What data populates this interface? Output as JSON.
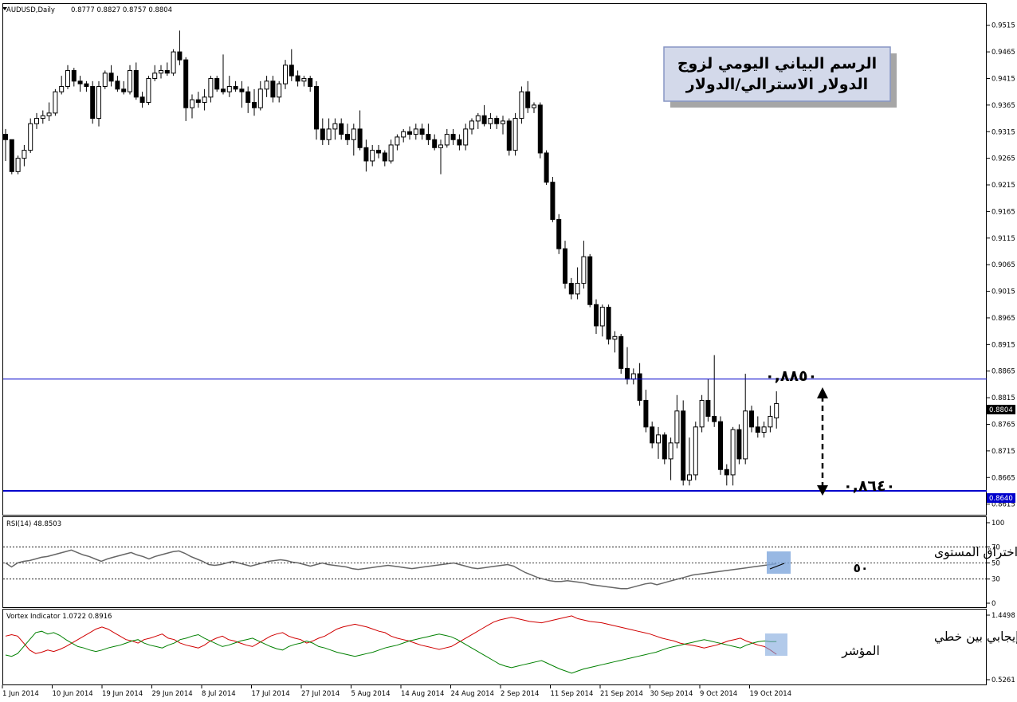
{
  "chart_data": [
    {
      "type": "candlestick",
      "symbol_label": "AUDUSD,Daily",
      "ohlc_label": "0.8777 0.8827 0.8757 0.8804",
      "title_line1": "الرسم البياني اليومي لزوج",
      "title_line2": "الدولار الاسترالي/الدولار",
      "ylim": [
        0.8595,
        0.9555
      ],
      "y_ticks": [
        "0.9515",
        "0.9465",
        "0.9415",
        "0.9365",
        "0.9315",
        "0.9265",
        "0.9215",
        "0.9165",
        "0.9115",
        "0.9065",
        "0.9015",
        "0.8965",
        "0.8915",
        "0.8865",
        "0.8815",
        "0.8765",
        "0.8715",
        "0.8665",
        "0.8615"
      ],
      "price_badge": "0.8804",
      "level_badge": "0.8640",
      "levels": [
        {
          "value": 0.885,
          "label": "٠,٨٨٥٠"
        },
        {
          "value": 0.864,
          "label": "٠,٨٦٤٠"
        }
      ],
      "x_labels": [
        "1 Jun 2014",
        "10 Jun 2014",
        "19 Jun 2014",
        "29 Jun 2014",
        "8 Jul 2014",
        "17 Jul 2014",
        "27 Jul 2014",
        "5 Aug 2014",
        "14 Aug 2014",
        "24 Aug 2014",
        "2 Sep 2014",
        "11 Sep 2014",
        "21 Sep 2014",
        "30 Sep 2014",
        "9 Oct 2014",
        "19 Oct 2014"
      ],
      "candles": [
        [
          0.931,
          0.932,
          0.926,
          0.93
        ],
        [
          0.93,
          0.93,
          0.9235,
          0.924
        ],
        [
          0.924,
          0.927,
          0.9235,
          0.9265
        ],
        [
          0.9265,
          0.929,
          0.925,
          0.928
        ],
        [
          0.928,
          0.934,
          0.9275,
          0.933
        ],
        [
          0.933,
          0.935,
          0.932,
          0.934
        ],
        [
          0.934,
          0.9355,
          0.933,
          0.9345
        ],
        [
          0.9345,
          0.937,
          0.9335,
          0.935
        ],
        [
          0.935,
          0.9395,
          0.9345,
          0.939
        ],
        [
          0.939,
          0.942,
          0.9385,
          0.94
        ],
        [
          0.94,
          0.944,
          0.9395,
          0.943
        ],
        [
          0.943,
          0.9435,
          0.94,
          0.941
        ],
        [
          0.941,
          0.942,
          0.939,
          0.9405
        ],
        [
          0.9405,
          0.941,
          0.939,
          0.94
        ],
        [
          0.94,
          0.941,
          0.933,
          0.934
        ],
        [
          0.934,
          0.941,
          0.9325,
          0.94
        ],
        [
          0.94,
          0.943,
          0.9395,
          0.9425
        ],
        [
          0.9425,
          0.944,
          0.94,
          0.941
        ],
        [
          0.941,
          0.942,
          0.939,
          0.9395
        ],
        [
          0.9395,
          0.941,
          0.9385,
          0.939
        ],
        [
          0.939,
          0.944,
          0.9385,
          0.943
        ],
        [
          0.943,
          0.9445,
          0.9375,
          0.938
        ],
        [
          0.938,
          0.939,
          0.936,
          0.937
        ],
        [
          0.937,
          0.942,
          0.9365,
          0.9415
        ],
        [
          0.9415,
          0.944,
          0.941,
          0.9425
        ],
        [
          0.9425,
          0.944,
          0.9415,
          0.943
        ],
        [
          0.943,
          0.9445,
          0.942,
          0.9425
        ],
        [
          0.9425,
          0.947,
          0.942,
          0.9465
        ],
        [
          0.9465,
          0.9505,
          0.944,
          0.945
        ],
        [
          0.945,
          0.9455,
          0.9335,
          0.936
        ],
        [
          0.936,
          0.9385,
          0.934,
          0.9375
        ],
        [
          0.9375,
          0.939,
          0.936,
          0.937
        ],
        [
          0.937,
          0.9395,
          0.9355,
          0.938
        ],
        [
          0.938,
          0.942,
          0.937,
          0.9415
        ],
        [
          0.9415,
          0.942,
          0.939,
          0.9395
        ],
        [
          0.9395,
          0.946,
          0.9385,
          0.939
        ],
        [
          0.939,
          0.942,
          0.938,
          0.94
        ],
        [
          0.94,
          0.941,
          0.939,
          0.9395
        ],
        [
          0.9395,
          0.941,
          0.936,
          0.939
        ],
        [
          0.939,
          0.94,
          0.935,
          0.937
        ],
        [
          0.937,
          0.9395,
          0.9345,
          0.936
        ],
        [
          0.936,
          0.941,
          0.9355,
          0.9395
        ],
        [
          0.9395,
          0.942,
          0.938,
          0.941
        ],
        [
          0.941,
          0.942,
          0.937,
          0.938
        ],
        [
          0.938,
          0.941,
          0.937,
          0.9405
        ],
        [
          0.9405,
          0.945,
          0.9395,
          0.944
        ],
        [
          0.944,
          0.947,
          0.941,
          0.942
        ],
        [
          0.942,
          0.943,
          0.94,
          0.941
        ],
        [
          0.941,
          0.942,
          0.94,
          0.9415
        ],
        [
          0.9415,
          0.942,
          0.939,
          0.94
        ],
        [
          0.94,
          0.941,
          0.93,
          0.932
        ],
        [
          0.932,
          0.934,
          0.929,
          0.93
        ],
        [
          0.93,
          0.934,
          0.929,
          0.932
        ],
        [
          0.932,
          0.934,
          0.93,
          0.933
        ],
        [
          0.933,
          0.934,
          0.93,
          0.931
        ],
        [
          0.931,
          0.933,
          0.929,
          0.93
        ],
        [
          0.93,
          0.933,
          0.927,
          0.932
        ],
        [
          0.932,
          0.9355,
          0.928,
          0.9285
        ],
        [
          0.9285,
          0.93,
          0.924,
          0.926
        ],
        [
          0.926,
          0.929,
          0.925,
          0.928
        ],
        [
          0.928,
          0.929,
          0.9265,
          0.9275
        ],
        [
          0.9275,
          0.928,
          0.925,
          0.926
        ],
        [
          0.926,
          0.93,
          0.9255,
          0.929
        ],
        [
          0.929,
          0.931,
          0.928,
          0.9305
        ],
        [
          0.9305,
          0.932,
          0.9295,
          0.9315
        ],
        [
          0.9315,
          0.9325,
          0.93,
          0.931
        ],
        [
          0.931,
          0.933,
          0.93,
          0.932
        ],
        [
          0.932,
          0.933,
          0.93,
          0.931
        ],
        [
          0.931,
          0.933,
          0.929,
          0.93
        ],
        [
          0.93,
          0.931,
          0.928,
          0.9285
        ],
        [
          0.9285,
          0.93,
          0.9235,
          0.929
        ],
        [
          0.929,
          0.932,
          0.9285,
          0.931
        ],
        [
          0.931,
          0.932,
          0.929,
          0.93
        ],
        [
          0.93,
          0.931,
          0.928,
          0.929
        ],
        [
          0.929,
          0.933,
          0.928,
          0.932
        ],
        [
          0.932,
          0.934,
          0.931,
          0.9335
        ],
        [
          0.9335,
          0.935,
          0.932,
          0.9345
        ],
        [
          0.9345,
          0.9365,
          0.9325,
          0.933
        ],
        [
          0.933,
          0.935,
          0.932,
          0.934
        ],
        [
          0.934,
          0.9345,
          0.932,
          0.933
        ],
        [
          0.933,
          0.9345,
          0.931,
          0.9335
        ],
        [
          0.9335,
          0.934,
          0.927,
          0.928
        ],
        [
          0.928,
          0.935,
          0.927,
          0.934
        ],
        [
          0.934,
          0.94,
          0.933,
          0.939
        ],
        [
          0.939,
          0.941,
          0.935,
          0.936
        ],
        [
          0.936,
          0.937,
          0.935,
          0.9365
        ],
        [
          0.9365,
          0.937,
          0.9265,
          0.9275
        ],
        [
          0.9275,
          0.928,
          0.9215,
          0.922
        ],
        [
          0.922,
          0.923,
          0.9145,
          0.915
        ],
        [
          0.915,
          0.916,
          0.9085,
          0.9095
        ],
        [
          0.9095,
          0.911,
          0.902,
          0.903
        ],
        [
          0.903,
          0.904,
          0.9,
          0.901
        ],
        [
          0.901,
          0.906,
          0.9,
          0.903
        ],
        [
          0.903,
          0.911,
          0.902,
          0.908
        ],
        [
          0.908,
          0.9085,
          0.8985,
          0.899
        ],
        [
          0.899,
          0.9,
          0.8935,
          0.895
        ],
        [
          0.895,
          0.899,
          0.893,
          0.8985
        ],
        [
          0.8985,
          0.899,
          0.8915,
          0.8925
        ],
        [
          0.8925,
          0.894,
          0.89,
          0.893
        ],
        [
          0.893,
          0.8935,
          0.886,
          0.887
        ],
        [
          0.887,
          0.891,
          0.884,
          0.885
        ],
        [
          0.885,
          0.887,
          0.884,
          0.886
        ],
        [
          0.886,
          0.888,
          0.88,
          0.881
        ],
        [
          0.881,
          0.883,
          0.875,
          0.876
        ],
        [
          0.876,
          0.877,
          0.872,
          0.873
        ],
        [
          0.873,
          0.876,
          0.87,
          0.8745
        ],
        [
          0.8745,
          0.875,
          0.869,
          0.87
        ],
        [
          0.87,
          0.874,
          0.866,
          0.873
        ],
        [
          0.873,
          0.882,
          0.872,
          0.879
        ],
        [
          0.879,
          0.881,
          0.865,
          0.866
        ],
        [
          0.866,
          0.874,
          0.865,
          0.867
        ],
        [
          0.867,
          0.877,
          0.866,
          0.876
        ],
        [
          0.876,
          0.882,
          0.875,
          0.881
        ],
        [
          0.881,
          0.885,
          0.877,
          0.878
        ],
        [
          0.878,
          0.8895,
          0.876,
          0.877
        ],
        [
          0.877,
          0.878,
          0.867,
          0.868
        ],
        [
          0.868,
          0.869,
          0.865,
          0.867
        ],
        [
          0.867,
          0.876,
          0.865,
          0.8755
        ],
        [
          0.8755,
          0.8765,
          0.869,
          0.87
        ],
        [
          0.87,
          0.886,
          0.869,
          0.879
        ],
        [
          0.879,
          0.88,
          0.875,
          0.876
        ],
        [
          0.876,
          0.878,
          0.874,
          0.875
        ],
        [
          0.875,
          0.877,
          0.874,
          0.876
        ],
        [
          0.876,
          0.88,
          0.875,
          0.878
        ],
        [
          0.8777,
          0.8827,
          0.8757,
          0.8804
        ]
      ]
    },
    {
      "type": "line",
      "label": "RSI(14) 48.8503",
      "ylim": [
        0,
        100
      ],
      "y_ticks": [
        "100",
        "70",
        "50",
        "30",
        "0"
      ],
      "levels": [
        70,
        50,
        30
      ],
      "values": [
        50,
        45,
        50,
        52,
        53,
        55,
        57,
        58,
        60,
        62,
        64,
        66,
        63,
        60,
        58,
        55,
        52,
        55,
        57,
        59,
        61,
        63,
        60,
        58,
        55,
        58,
        60,
        62,
        64,
        65,
        62,
        58,
        55,
        52,
        48,
        47,
        48,
        50,
        52,
        50,
        48,
        46,
        48,
        50,
        52,
        53,
        54,
        53,
        51,
        50,
        48,
        46,
        48,
        50,
        48,
        47,
        46,
        45,
        43,
        42,
        43,
        44,
        45,
        46,
        47,
        46,
        45,
        44,
        43,
        44,
        45,
        46,
        47,
        48,
        49,
        50,
        48,
        46,
        44,
        43,
        44,
        45,
        46,
        47,
        48,
        46,
        42,
        38,
        35,
        32,
        30,
        28,
        27,
        27,
        28,
        27,
        26,
        25,
        23,
        22,
        21,
        20,
        19,
        18,
        18,
        20,
        22,
        24,
        25,
        23,
        25,
        27,
        29,
        31,
        33,
        35,
        36,
        37,
        38,
        39,
        40,
        41,
        42,
        43,
        44,
        45,
        46,
        47,
        48,
        49
      ],
      "annotation": "محاولة اختراق المستوى",
      "annotation2": "٥٠"
    },
    {
      "type": "line",
      "label": "Vortex Indicator 1.0722 0.8916",
      "y_ticks": [
        "1.4498",
        "0.5261"
      ],
      "ylim": [
        0.5261,
        1.4498
      ],
      "series": [
        {
          "color": "#d00000",
          "values": [
            1.15,
            1.17,
            1.15,
            1.05,
            0.95,
            0.9,
            0.92,
            0.95,
            0.93,
            0.96,
            1.0,
            1.05,
            1.1,
            1.15,
            1.2,
            1.25,
            1.28,
            1.25,
            1.2,
            1.15,
            1.1,
            1.08,
            1.05,
            1.1,
            1.12,
            1.15,
            1.18,
            1.12,
            1.1,
            1.05,
            1.02,
            1.0,
            0.98,
            1.02,
            1.08,
            1.12,
            1.15,
            1.1,
            1.08,
            1.05,
            1.02,
            1.0,
            1.05,
            1.1,
            1.15,
            1.18,
            1.2,
            1.15,
            1.12,
            1.1,
            1.05,
            1.08,
            1.12,
            1.15,
            1.2,
            1.25,
            1.28,
            1.3,
            1.32,
            1.3,
            1.28,
            1.25,
            1.22,
            1.2,
            1.15,
            1.12,
            1.1,
            1.08,
            1.05,
            1.02,
            1.0,
            0.98,
            0.96,
            0.98,
            1.0,
            1.05,
            1.1,
            1.15,
            1.2,
            1.25,
            1.3,
            1.35,
            1.38,
            1.4,
            1.42,
            1.4,
            1.38,
            1.36,
            1.35,
            1.34,
            1.36,
            1.38,
            1.4,
            1.42,
            1.44,
            1.4,
            1.38,
            1.36,
            1.35,
            1.34,
            1.32,
            1.3,
            1.28,
            1.26,
            1.24,
            1.22,
            1.2,
            1.18,
            1.15,
            1.12,
            1.1,
            1.08,
            1.05,
            1.03,
            1.02,
            1.0,
            0.98,
            1.0,
            1.02,
            1.05,
            1.08,
            1.1,
            1.12,
            1.08,
            1.05,
            1.02,
            1.0,
            0.95,
            0.89
          ]
        },
        {
          "color": "#008000",
          "values": [
            0.88,
            0.86,
            0.9,
            1.0,
            1.1,
            1.2,
            1.22,
            1.18,
            1.2,
            1.16,
            1.1,
            1.05,
            1.0,
            0.98,
            0.95,
            0.93,
            0.95,
            0.98,
            1.0,
            1.02,
            1.05,
            1.08,
            1.1,
            1.05,
            1.02,
            1.0,
            0.98,
            1.02,
            1.05,
            1.1,
            1.12,
            1.15,
            1.17,
            1.12,
            1.08,
            1.04,
            1.0,
            1.02,
            1.05,
            1.08,
            1.1,
            1.12,
            1.08,
            1.04,
            1.0,
            0.97,
            0.95,
            1.0,
            1.03,
            1.05,
            1.08,
            1.05,
            1.0,
            0.98,
            0.95,
            0.92,
            0.9,
            0.88,
            0.86,
            0.88,
            0.9,
            0.92,
            0.95,
            0.98,
            1.0,
            1.02,
            1.05,
            1.08,
            1.1,
            1.12,
            1.14,
            1.16,
            1.18,
            1.16,
            1.14,
            1.1,
            1.05,
            1.0,
            0.95,
            0.9,
            0.85,
            0.8,
            0.75,
            0.72,
            0.7,
            0.72,
            0.74,
            0.76,
            0.78,
            0.8,
            0.76,
            0.72,
            0.68,
            0.65,
            0.62,
            0.65,
            0.68,
            0.7,
            0.72,
            0.74,
            0.76,
            0.78,
            0.8,
            0.82,
            0.84,
            0.86,
            0.88,
            0.9,
            0.92,
            0.95,
            0.98,
            1.0,
            1.02,
            1.04,
            1.06,
            1.08,
            1.1,
            1.08,
            1.06,
            1.04,
            1.02,
            1.0,
            0.98,
            1.02,
            1.05,
            1.07,
            1.08,
            1.07,
            1.0722
          ]
        }
      ],
      "annotation": "تقاطع إيجابي بين خطي",
      "annotation2": "المؤشر"
    }
  ],
  "colors": {
    "level_line": "#0000cc",
    "badge": "#000000",
    "highlight": "#7ea6dc"
  }
}
